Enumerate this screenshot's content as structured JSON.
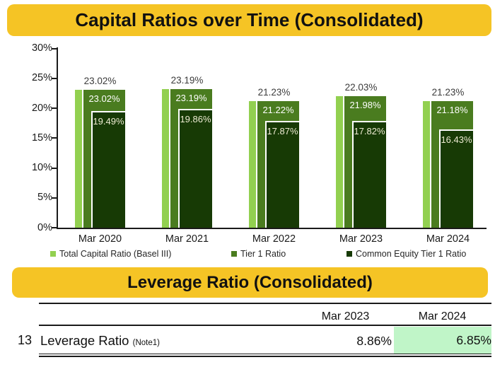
{
  "capital_section": {
    "title": "Capital Ratios over Time (Consolidated)"
  },
  "chart_data": {
    "type": "bar",
    "title": "Capital Ratios over Time (Consolidated)",
    "categories": [
      "Mar 2020",
      "Mar 2021",
      "Mar 2022",
      "Mar 2023",
      "Mar 2024"
    ],
    "series": [
      {
        "name": "Total Capital Ratio (Basel III)",
        "color": "#92D050",
        "values": [
          23.02,
          23.19,
          21.23,
          22.03,
          21.23
        ]
      },
      {
        "name": "Tier 1 Ratio",
        "color": "#4A7C1F",
        "values": [
          23.02,
          23.19,
          21.22,
          21.98,
          21.18
        ]
      },
      {
        "name": "Common Equity Tier 1 Ratio",
        "color": "#173A05",
        "values": [
          19.49,
          19.86,
          17.87,
          17.82,
          16.43
        ]
      }
    ],
    "xlabel": "",
    "ylabel": "",
    "ylim": [
      0,
      30
    ],
    "ytick_step": 5,
    "ytick_suffix": "%",
    "grid": false,
    "legend_position": "bottom",
    "data_label_format": "0.00%"
  },
  "leverage_section": {
    "title": "Leverage Ratio (Consolidated)",
    "table": {
      "columns": [
        "",
        "Mar 2023",
        "Mar 2024"
      ],
      "rows": [
        {
          "num": "13",
          "label": "Leverage Ratio",
          "note": "(Note1)",
          "values": [
            "8.86%",
            "6.85%"
          ],
          "highlight_col": 1
        }
      ]
    }
  },
  "colors": {
    "banner": "#F5C425",
    "bar_light_green": "#92D050",
    "bar_medium_green": "#4A7C1F",
    "bar_dark_green": "#173A05",
    "highlight_cell": "#C0F5C8",
    "axis": "#262626",
    "inside_label_light": "#FFFFFF",
    "inside_label_cream": "#EDEBD2"
  }
}
